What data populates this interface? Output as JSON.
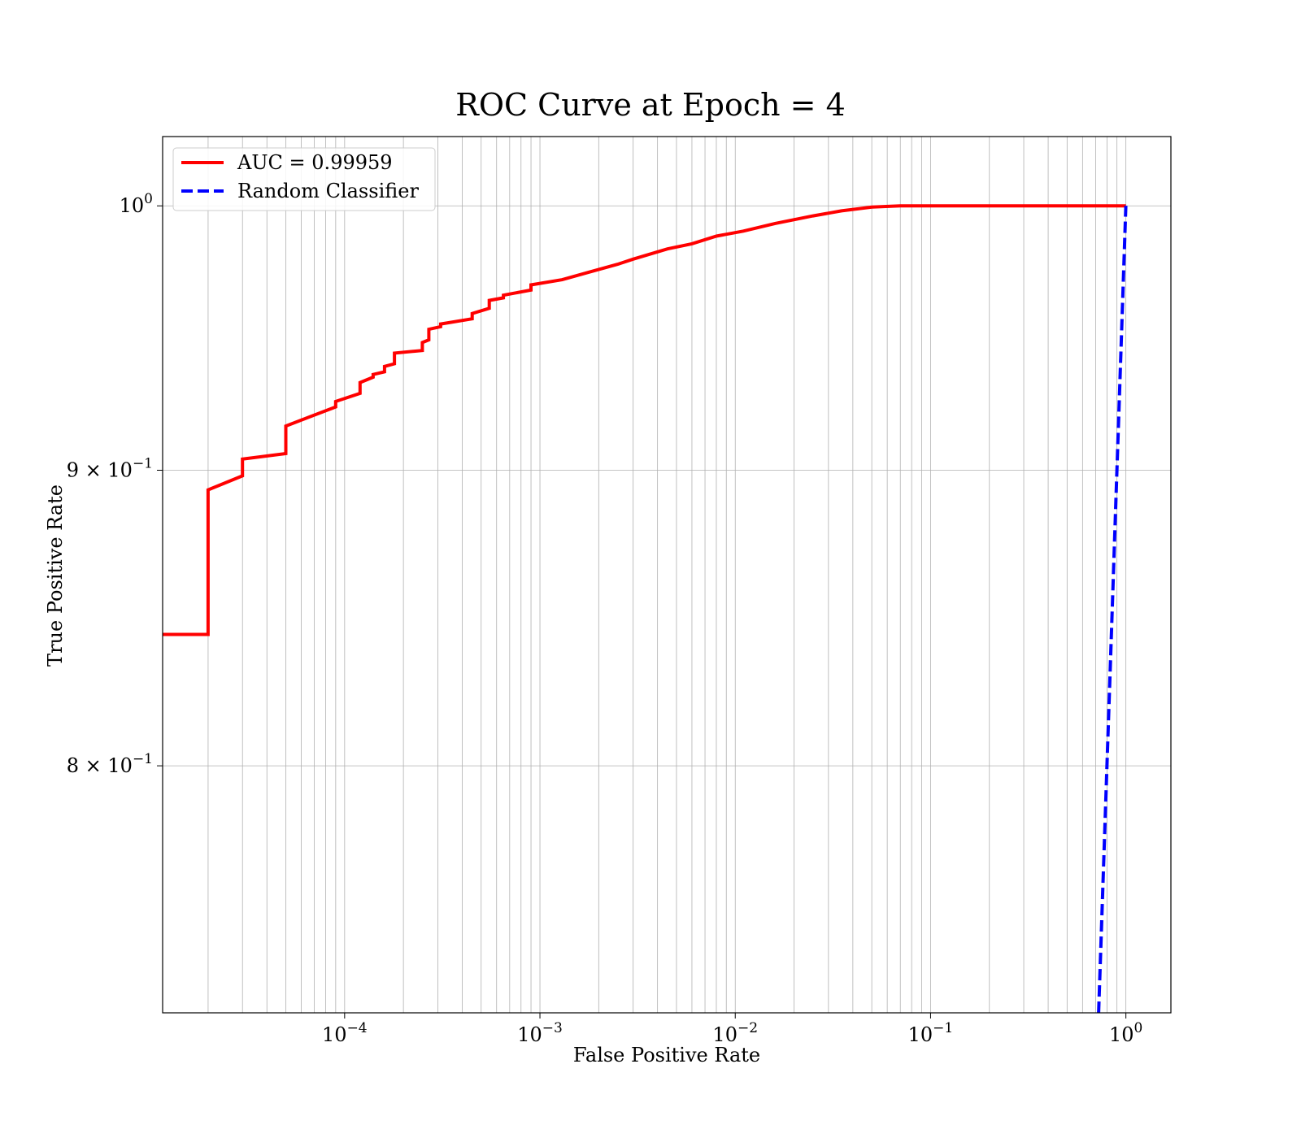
{
  "chart_data": {
    "type": "line",
    "title": "ROC Curve at Epoch = 4",
    "xlabel": "False Positive Rate",
    "ylabel": "True Positive Rate",
    "xscale": "log",
    "yscale": "log",
    "xlim": [
      1.17e-05,
      1.7
    ],
    "ylim": [
      0.725,
      1.028
    ],
    "grid": "both-major-and-minor-x",
    "legend_placement": "upper-left",
    "x_ticks": [
      {
        "value": 0.0001,
        "base": "10",
        "exp": "−4"
      },
      {
        "value": 0.001,
        "base": "10",
        "exp": "−3"
      },
      {
        "value": 0.01,
        "base": "10",
        "exp": "−2"
      },
      {
        "value": 0.1,
        "base": "10",
        "exp": "−1"
      },
      {
        "value": 1,
        "base": "10",
        "exp": "0"
      }
    ],
    "y_ticks": [
      {
        "value": 1.0,
        "mantissa": "",
        "base": "10",
        "exp": "0"
      },
      {
        "value": 0.9,
        "mantissa": "9 × ",
        "base": "10",
        "exp": "−1"
      },
      {
        "value": 0.8,
        "mantissa": "8 × ",
        "base": "10",
        "exp": "−1"
      }
    ],
    "series": [
      {
        "name": "AUC = 0.99959",
        "color": "#ff0000",
        "style": "solid",
        "x": [
          1.17e-05,
          2e-05,
          2e-05,
          3e-05,
          3e-05,
          5e-05,
          5e-05,
          9e-05,
          9e-05,
          0.00012,
          0.00012,
          0.00014,
          0.00014,
          0.00016,
          0.00016,
          0.00018,
          0.00018,
          0.00025,
          0.00025,
          0.00027,
          0.00027,
          0.00031,
          0.00031,
          0.00045,
          0.00045,
          0.00055,
          0.00055,
          0.00065,
          0.00065,
          0.0009,
          0.0009,
          0.0013,
          0.0018,
          0.0025,
          0.003,
          0.0045,
          0.006,
          0.008,
          0.011,
          0.016,
          0.025,
          0.035,
          0.05,
          0.07,
          0.1,
          0.2,
          0.5,
          1.0
        ],
        "y": [
          0.843,
          0.843,
          0.893,
          0.898,
          0.904,
          0.906,
          0.916,
          0.923,
          0.925,
          0.928,
          0.932,
          0.934,
          0.935,
          0.936,
          0.938,
          0.939,
          0.943,
          0.944,
          0.947,
          0.948,
          0.952,
          0.953,
          0.954,
          0.956,
          0.958,
          0.96,
          0.963,
          0.964,
          0.965,
          0.967,
          0.969,
          0.971,
          0.974,
          0.977,
          0.979,
          0.983,
          0.985,
          0.988,
          0.99,
          0.993,
          0.996,
          0.998,
          0.9995,
          1.0,
          1.0,
          1.0,
          1.0,
          1.0
        ]
      },
      {
        "name": "Random Classifier",
        "color": "#0000ff",
        "style": "dashed",
        "x": [
          0.725,
          1.0
        ],
        "y": [
          0.725,
          1.0
        ]
      }
    ]
  }
}
